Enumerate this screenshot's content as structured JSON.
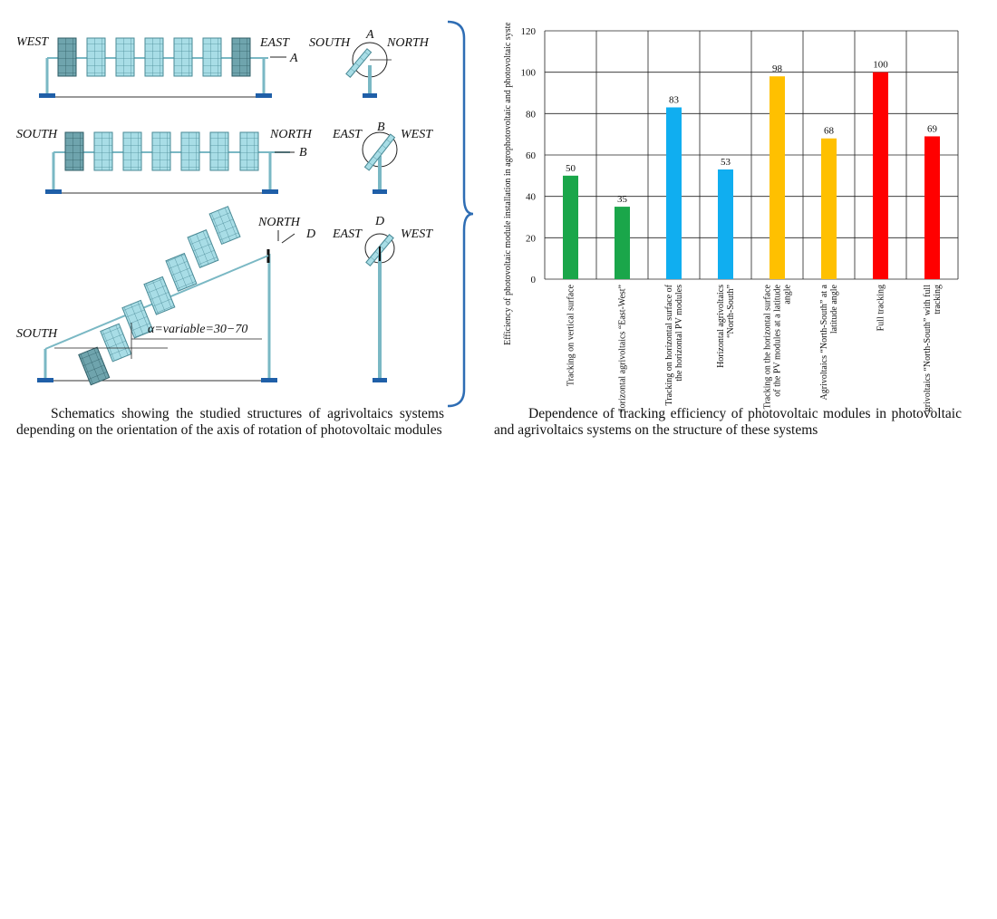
{
  "figure_left": {
    "row_a": {
      "left_dir": "WEST",
      "right_dir": "EAST",
      "marker": "A",
      "side_left": "SOUTH",
      "side_marker": "A",
      "side_right": "NORTH"
    },
    "row_b": {
      "left_dir": "SOUTH",
      "right_dir": "NORTH",
      "marker": "B",
      "side_left": "EAST",
      "side_marker": "B",
      "side_right": "WEST"
    },
    "row_d": {
      "top_dir": "NORTH",
      "marker": "D",
      "bottom_dir": "SOUTH",
      "angle_label": "α=variable=30−70",
      "side_left": "EAST",
      "side_marker": "D",
      "side_right": "WEST"
    },
    "caption": "Schematics showing the studied structures of agrivoltaics systems depending on the orientation of the axis of rotation of photovoltaic modules"
  },
  "figure_right": {
    "caption": "Dependence of tracking efficiency of photovoltaic modules in photovoltaic and agrivoltaics systems on the structure of these systems"
  },
  "colors": {
    "green": "#1aa64a",
    "blue": "#10aef0",
    "amber": "#ffc000",
    "red": "#ff0000",
    "panel": "#a8dde6",
    "panel_dark": "#5f9aa6",
    "base": "#1f5fa8",
    "brace": "#2e6db4"
  },
  "chart_data": {
    "type": "bar",
    "ylabel": "Efficiency of photovoltaic module installation in agrophotovoltaic and photovoltaic systems, %",
    "ylim": [
      0,
      120
    ],
    "yticks": [
      0,
      20,
      40,
      60,
      80,
      100,
      120
    ],
    "grid": true,
    "categories": [
      "Tracking on vertical surface",
      "Horizontal agrivoltaics “East-West”",
      "Tracking on horizontal surface of the horizontal PV modules",
      "Horizontal agrivoltaics “North-South”",
      "Tracking on the horizontal surface of the PV modules at a latitude angle",
      "Agrivoltaics “North-South” at a latitude angle",
      "Full tracking",
      "Agrivoltaics “North-South” with full tracking"
    ],
    "values": [
      50,
      35,
      83,
      53,
      98,
      68,
      100,
      69
    ],
    "bar_colors": [
      "#1aa64a",
      "#1aa64a",
      "#10aef0",
      "#10aef0",
      "#ffc000",
      "#ffc000",
      "#ff0000",
      "#ff0000"
    ]
  }
}
